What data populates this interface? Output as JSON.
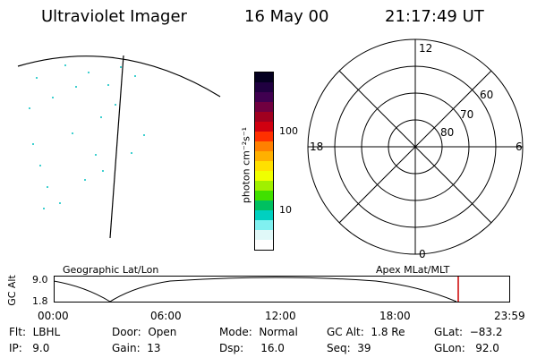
{
  "header": {
    "title": "Ultraviolet Imager",
    "date": "16 May 00",
    "time": "21:17:49 UT"
  },
  "colorbar": {
    "label": "photon cm⁻²s⁻¹",
    "ticks": [
      "100",
      "10"
    ],
    "colors": [
      "#050020",
      "#200040",
      "#400050",
      "#700040",
      "#a00020",
      "#d00010",
      "#ff3000",
      "#ff8000",
      "#ffb000",
      "#ffe000",
      "#f0ff00",
      "#a0f000",
      "#40e000",
      "#00c060",
      "#00d0c0",
      "#80f0f0",
      "#e0f8f8",
      "#ffffff"
    ]
  },
  "polar_plot": {
    "mlt_labels": {
      "top": "12",
      "left": "18",
      "right": "6",
      "bottom": "0"
    },
    "lat_labels": [
      "60",
      "70",
      "80"
    ]
  },
  "altitude_plot": {
    "ylabel": "GC Alt",
    "ytick_top": "9.0",
    "ytick_bottom": "1.8",
    "left_title": "Geographic Lat/Lon",
    "right_title": "Apex MLat/MLT",
    "xticks": [
      "00:00",
      "06:00",
      "12:00",
      "18:00",
      "23:59"
    ],
    "marker_color": "#cc0000"
  },
  "status": {
    "flt": "Flt:  LBHL",
    "door": "Door:  Open",
    "mode": "Mode:  Normal",
    "gc_alt": "GC Alt:  1.8 Re",
    "glat": "GLat:  −83.2",
    "ip": "IP:   9.0",
    "gain": "Gain:  13",
    "dsp": "Dsp:     16.0",
    "seq": "Seq:  39",
    "glon": "GLon:   92.0"
  }
}
